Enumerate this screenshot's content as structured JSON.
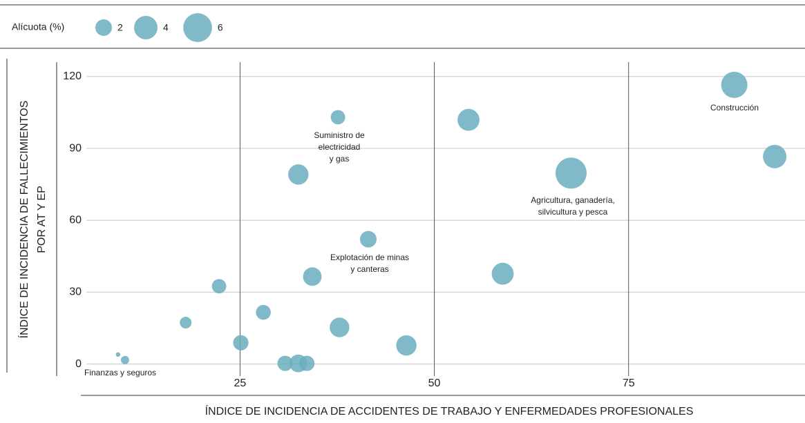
{
  "chart_data": {
    "type": "bubble",
    "size_legend": {
      "title": "Alícuota (%)",
      "sizes": [
        2,
        4,
        6
      ]
    },
    "xlabel": "ÍNDICE DE INCIDENCIA DE ACCIDENTES DE TRABAJO Y ENFERMEDADES PROFESIONALES",
    "ylabel": [
      "ÍNDICE DE INCIDENCIA DE FALLECIMIENTOS",
      "POR AT Y EP"
    ],
    "color": "#6aaebe",
    "x": [
      88.6,
      93.8,
      67.6,
      54.4,
      37.6,
      32.5,
      41.5,
      34.3,
      58.8,
      22.3,
      18.0,
      28.0,
      37.8,
      46.4,
      25.1,
      30.8,
      32.5,
      33.6,
      10.2,
      9.3
    ],
    "y": [
      116.5,
      86.6,
      79.7,
      101.9,
      103,
      79.1,
      52.1,
      36.5,
      37.7,
      32.5,
      17.3,
      21.6,
      15.3,
      7.8,
      8.9,
      0.3,
      0.3,
      0.3,
      1.7,
      4
    ],
    "sizes": [
      5,
      4,
      7,
      3.5,
      1.5,
      3,
      2,
      2.5,
      3.5,
      1.5,
      1,
      1.6,
      2.8,
      3,
      1.7,
      1.7,
      2.3,
      1.7,
      0.5,
      0.15
    ],
    "annotations": [
      [
        "Construcción"
      ],
      [
        "Suministro de",
        "electricidad",
        "y gas"
      ],
      [
        "Agricultura, ganadería,",
        "silvicultura y pesca"
      ],
      [
        "Explotación de minas",
        "y canteras"
      ],
      [
        "Finanzas y seguros"
      ]
    ],
    "xlim": [
      1.4,
      97.7
    ],
    "ylim": [
      -5,
      126
    ],
    "xticks": [
      25,
      50,
      75
    ],
    "yticks": [
      0,
      30,
      60,
      90,
      120
    ],
    "grid": true
  }
}
